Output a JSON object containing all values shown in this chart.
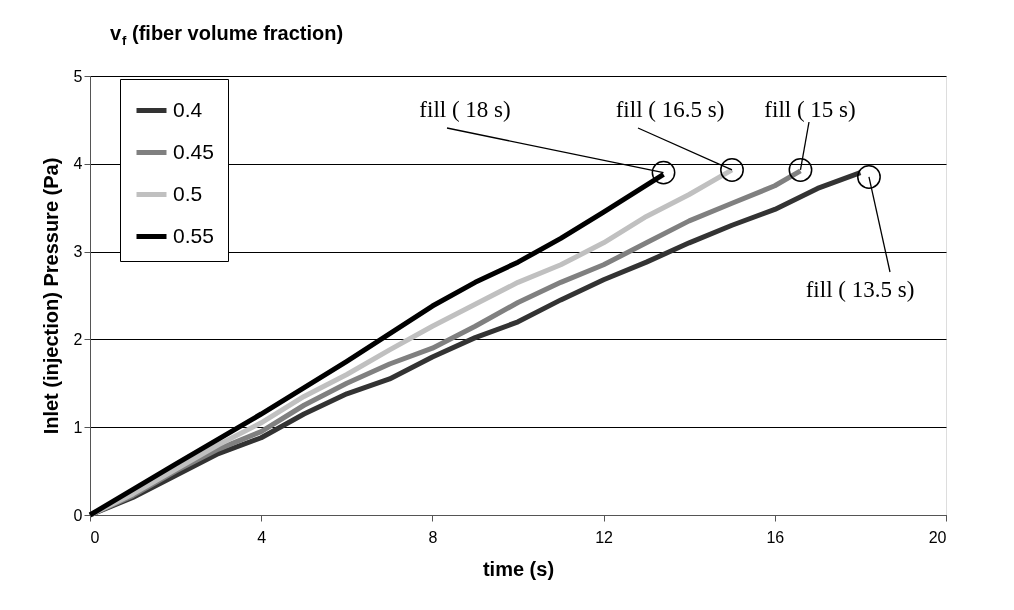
{
  "chart_data": {
    "type": "line",
    "xlabel": "time (s)",
    "ylabel": "Inlet (injection) Pressure (Pa)",
    "legend_title": "v$_{f}$ (fiber volume fraction)",
    "xlim": [
      0,
      20
    ],
    "xticks": [
      0,
      4,
      8,
      12,
      16,
      20
    ],
    "ylim": [
      0,
      5
    ],
    "yticks": [
      0,
      1,
      2,
      3,
      4,
      5
    ],
    "grid": "y",
    "legend": "top left",
    "marker": "none",
    "line_style": "solid",
    "series": [
      {
        "name": "0.4",
        "color": "#333333",
        "x": [
          0,
          1,
          2,
          3,
          4,
          5,
          6,
          7,
          8,
          9,
          10,
          11,
          12,
          13,
          14,
          15,
          16,
          17,
          18
        ],
        "values": [
          0,
          0.2,
          0.45,
          0.7,
          0.88,
          1.15,
          1.38,
          1.55,
          1.8,
          2.02,
          2.2,
          2.45,
          2.68,
          2.88,
          3.1,
          3.3,
          3.48,
          3.72,
          3.9
        ]
      },
      {
        "name": "0.45",
        "color": "#808080",
        "x": [
          0,
          1,
          2,
          3,
          4,
          5,
          6,
          7,
          8,
          9,
          10,
          11,
          12,
          13,
          14,
          15,
          16,
          16.6
        ],
        "values": [
          0,
          0.22,
          0.5,
          0.75,
          0.95,
          1.25,
          1.5,
          1.72,
          1.9,
          2.15,
          2.42,
          2.65,
          2.85,
          3.1,
          3.35,
          3.55,
          3.75,
          3.92
        ]
      },
      {
        "name": "0.5",
        "color": "#c0c0c0",
        "x": [
          0,
          1,
          2,
          3,
          4,
          5,
          6,
          7,
          8,
          9,
          10,
          11,
          12,
          13,
          14,
          15
        ],
        "values": [
          0,
          0.24,
          0.52,
          0.8,
          1.05,
          1.35,
          1.6,
          1.88,
          2.15,
          2.4,
          2.65,
          2.85,
          3.1,
          3.4,
          3.65,
          3.93
        ]
      },
      {
        "name": "0.55",
        "color": "#000000",
        "x": [
          0,
          2,
          4,
          6,
          8,
          9,
          10,
          11,
          12,
          13.4
        ],
        "values": [
          0,
          0.58,
          1.15,
          1.75,
          2.38,
          2.65,
          2.88,
          3.15,
          3.45,
          3.88
        ]
      }
    ],
    "annotations": [
      {
        "text": "fill ( 18 s)",
        "x": 13.4,
        "y": 3.9
      },
      {
        "text": "fill ( 16.5 s)",
        "x": 15.0,
        "y": 3.93
      },
      {
        "text": "fill ( 15 s)",
        "x": 16.6,
        "y": 3.93
      },
      {
        "text": "fill ( 13.5 s)",
        "x": 18.2,
        "y": 3.85
      }
    ]
  }
}
